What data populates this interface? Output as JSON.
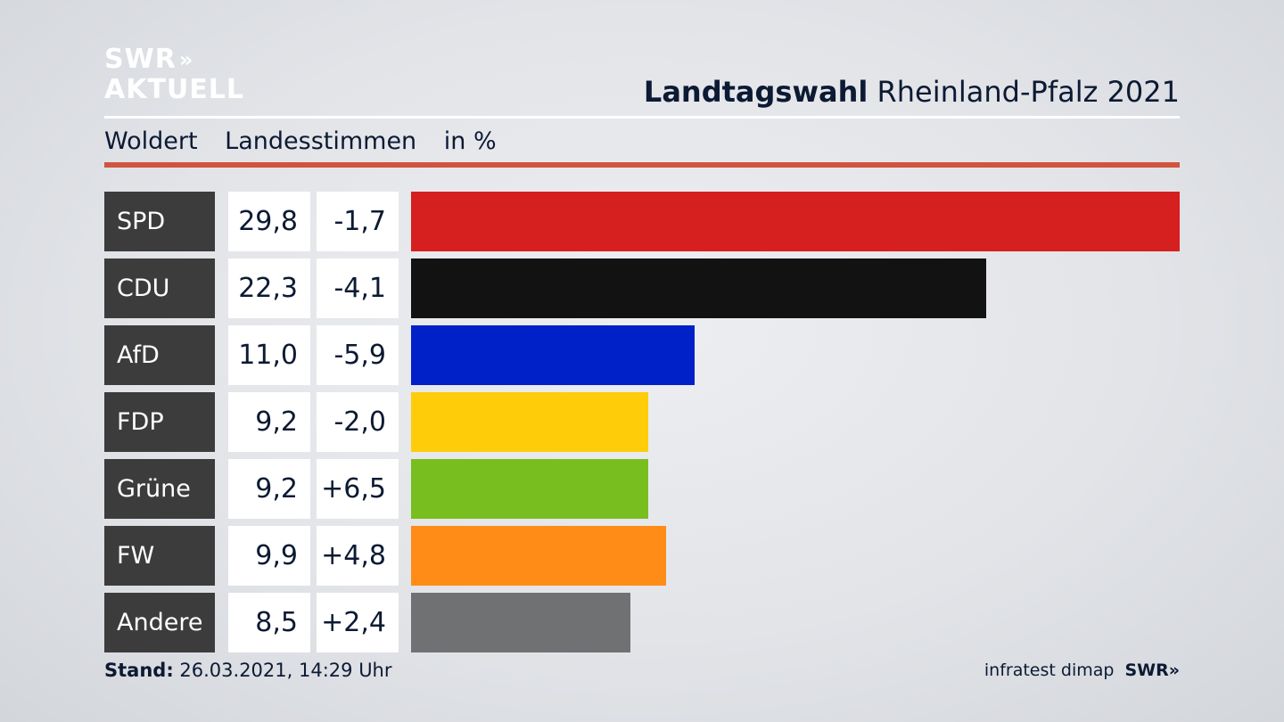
{
  "logo": {
    "line1": "SWR",
    "chevrons": "»",
    "line2": "AKTUELL"
  },
  "headline": {
    "bold": "Landtagswahl",
    "rest": "Rheinland-Pfalz 2021"
  },
  "subhead": {
    "place": "Woldert",
    "metric": "Landesstimmen",
    "unit": "in %"
  },
  "footer": {
    "stand_label": "Stand:",
    "stand_value": "26.03.2021, 14:29 Uhr",
    "source": "infratest dimap",
    "brand": "SWR",
    "brand_chevrons": "»"
  },
  "chart_data": {
    "type": "bar",
    "orientation": "horizontal",
    "categories": [
      "SPD",
      "CDU",
      "AfD",
      "FDP",
      "Grüne",
      "FW",
      "Andere"
    ],
    "values": [
      29.8,
      22.3,
      11.0,
      9.2,
      9.2,
      9.9,
      8.5
    ],
    "value_labels": [
      "29,8",
      "22,3",
      "11,0",
      "9,2",
      "9,2",
      "9,9",
      "8,5"
    ],
    "changes": [
      -1.7,
      -4.1,
      -5.9,
      -2.0,
      6.5,
      4.8,
      2.4
    ],
    "change_labels": [
      "-1,7",
      "-4,1",
      "-5,9",
      "-2,0",
      "+6,5",
      "+4,8",
      "+2,4"
    ],
    "colors": [
      "#d61f1f",
      "#121212",
      "#0020c8",
      "#ffcc0a",
      "#78be1e",
      "#ff8c17",
      "#707172"
    ],
    "xlim": [
      0,
      29.8
    ],
    "grid": false
  }
}
